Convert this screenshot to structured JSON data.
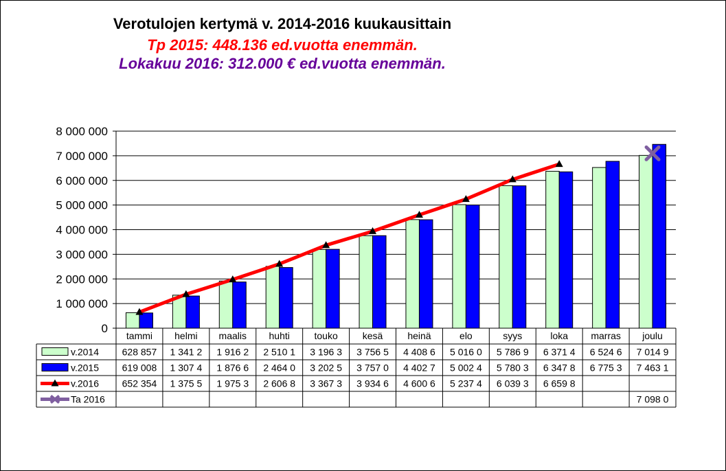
{
  "titles": {
    "main": "Verotulojen kertymä v. 2014-2016  kuukausittain",
    "line2": "Tp 2015: 448.136 ed.vuotta enemmän.",
    "line3": "Lokakuu 2016: 312.000 € ed.vuotta enemmän."
  },
  "chart_data": {
    "type": "bar",
    "title": "Verotulojen kertymä v. 2014-2016  kuukausittain",
    "categories": [
      "tammi",
      "helmi",
      "maalis",
      "huhti",
      "touko",
      "kesä",
      "heinä",
      "elo",
      "syys",
      "loka",
      "marras",
      "joulu"
    ],
    "ylim": [
      0,
      8000000
    ],
    "yticks": [
      0,
      1000000,
      2000000,
      3000000,
      4000000,
      5000000,
      6000000,
      7000000,
      8000000
    ],
    "ytick_labels": [
      "0",
      "1 000 000",
      "2 000 000",
      "3 000 000",
      "4 000 000",
      "5 000 000",
      "6 000 000",
      "7 000 000",
      "8 000 000"
    ],
    "grid": true,
    "legend_placement": "data-table-left",
    "series": [
      {
        "name": "v.2014",
        "kind": "bar",
        "color": "#ccffcc",
        "values": [
          628857,
          1341200,
          1916200,
          2510100,
          3196300,
          3756500,
          4408600,
          5016000,
          5786900,
          6371400,
          6524600,
          7014900
        ],
        "table_labels": [
          "628 857",
          "1 341 2",
          "1 916 2",
          "2 510 1",
          "3 196 3",
          "3 756 5",
          "4 408 6",
          "5 016 0",
          "5 786 9",
          "6 371 4",
          "6 524 6",
          "7 014 9"
        ]
      },
      {
        "name": "v.2015",
        "kind": "bar",
        "color": "#0000ff",
        "values": [
          619008,
          1307400,
          1876600,
          2464000,
          3202500,
          3757000,
          4402700,
          5002400,
          5780300,
          6347800,
          6775300,
          7463100
        ],
        "table_labels": [
          "619 008",
          "1 307 4",
          "1 876 6",
          "2 464 0",
          "3 202 5",
          "3 757 0",
          "4 402 7",
          "5 002 4",
          "5 780 3",
          "6 347 8",
          "6 775 3",
          "7 463 1"
        ]
      },
      {
        "name": "v.2016",
        "kind": "line",
        "color": "#ff0000",
        "values": [
          652354,
          1375500,
          1975300,
          2606800,
          3367300,
          3934600,
          4600600,
          5237400,
          6039300,
          6659800,
          null,
          null
        ],
        "table_labels": [
          "652 354",
          "1 375 5",
          "1 975 3",
          "2 606 8",
          "3 367 3",
          "3 934 6",
          "4 600 6",
          "5 237 4",
          "6 039 3",
          "6 659 8",
          "",
          ""
        ]
      },
      {
        "name": "Ta 2016",
        "kind": "point",
        "color": "#7f5fa0",
        "values": [
          null,
          null,
          null,
          null,
          null,
          null,
          null,
          null,
          null,
          null,
          null,
          7098000
        ],
        "table_labels": [
          "",
          "",
          "",
          "",
          "",
          "",
          "",
          "",
          "",
          "",
          "",
          "7 098 0"
        ]
      }
    ]
  }
}
